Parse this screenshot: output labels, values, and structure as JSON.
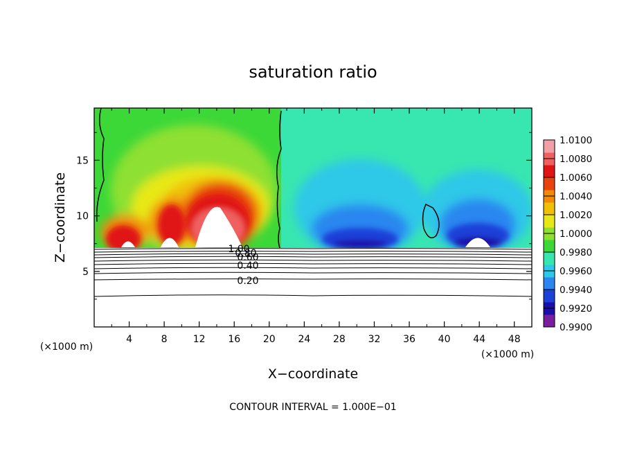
{
  "chart_data": {
    "type": "heatmap",
    "title": "saturation ratio",
    "xlabel": "X−coordinate",
    "ylabel": "Z−coordinate",
    "x_unit_left": "(×1000 m)",
    "x_unit_right": "(×1000 m)",
    "xlim": [
      0,
      50
    ],
    "ylim": [
      0,
      19.7
    ],
    "x_ticks": [
      4,
      8,
      12,
      16,
      20,
      24,
      28,
      32,
      36,
      40,
      44,
      48
    ],
    "x_tick_labels": [
      "4",
      "8",
      "12",
      "16",
      "20",
      "24",
      "28",
      "32",
      "36",
      "40",
      "44",
      "48"
    ],
    "y_ticks": [
      5,
      10,
      15
    ],
    "y_tick_labels": [
      "5",
      "10",
      "15"
    ],
    "colorbar": {
      "levels": [
        0.99,
        0.992,
        0.994,
        0.996,
        0.998,
        1.0,
        1.002,
        1.004,
        1.006,
        1.008,
        1.01
      ],
      "labels": [
        "0.9900",
        "0.9920",
        "0.9940",
        "0.9960",
        "0.9980",
        "1.0000",
        "1.0020",
        "1.0040",
        "1.0060",
        "1.0080",
        "1.0100"
      ],
      "colors": [
        "#7a1ea0",
        "#1a10a8",
        "#1c40d8",
        "#2b86f0",
        "#2ec8e8",
        "#38e6b0",
        "#3cd838",
        "#8ee030",
        "#e8e818",
        "#f0c008",
        "#f08a08",
        "#e8420e",
        "#e01414",
        "#f06060",
        "#f2a0a8"
      ]
    },
    "contour_lines": [
      {
        "level": 1.0,
        "label": "1.00"
      },
      {
        "level": 0.8,
        "label": "0.80"
      },
      {
        "level": 0.6,
        "label": "0.60"
      },
      {
        "level": 0.4,
        "label": "0.40"
      },
      {
        "level": 0.2,
        "label": "0.20"
      }
    ],
    "cloud_base_z": 7.3,
    "footer": "CONTOUR INTERVAL = 1.000E−01"
  },
  "colors": {
    "contour": "#000000",
    "axis": "#000000",
    "supersaturated_region": "#ff2020",
    "subsaturated_region": "#1830d0"
  }
}
